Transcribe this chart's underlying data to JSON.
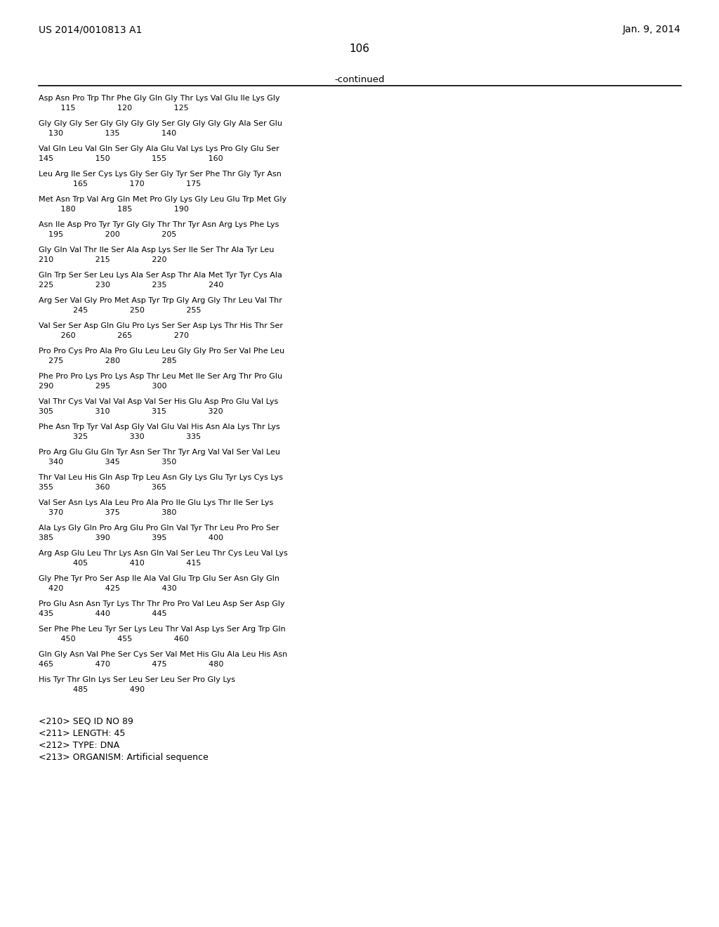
{
  "header_left": "US 2014/0010813 A1",
  "header_right": "Jan. 9, 2014",
  "page_number": "106",
  "continued_text": "-continued",
  "background_color": "#ffffff",
  "text_color": "#000000",
  "sequence_lines": [
    {
      "line1": "Asp Asn Pro Trp Thr Phe Gly Gln Gly Thr Lys Val Glu Ile Lys Gly",
      "line2": "         115                 120                 125"
    },
    {
      "line1": "Gly Gly Gly Ser Gly Gly Gly Gly Ser Gly Gly Gly Gly Ala Ser Glu",
      "line2": "    130                 135                 140"
    },
    {
      "line1": "Val Gln Leu Val Gln Ser Gly Ala Glu Val Lys Lys Pro Gly Glu Ser",
      "line2": "145                 150                 155                 160"
    },
    {
      "line1": "Leu Arg Ile Ser Cys Lys Gly Ser Gly Tyr Ser Phe Thr Gly Tyr Asn",
      "line2": "              165                 170                 175"
    },
    {
      "line1": "Met Asn Trp Val Arg Gln Met Pro Gly Lys Gly Leu Glu Trp Met Gly",
      "line2": "         180                 185                 190"
    },
    {
      "line1": "Asn Ile Asp Pro Tyr Tyr Gly Gly Thr Thr Tyr Asn Arg Lys Phe Lys",
      "line2": "    195                 200                 205"
    },
    {
      "line1": "Gly Gln Val Thr Ile Ser Ala Asp Lys Ser Ile Ser Thr Ala Tyr Leu",
      "line2": "210                 215                 220"
    },
    {
      "line1": "Gln Trp Ser Ser Leu Lys Ala Ser Asp Thr Ala Met Tyr Tyr Cys Ala",
      "line2": "225                 230                 235                 240"
    },
    {
      "line1": "Arg Ser Val Gly Pro Met Asp Tyr Trp Gly Arg Gly Thr Leu Val Thr",
      "line2": "              245                 250                 255"
    },
    {
      "line1": "Val Ser Ser Asp Gln Glu Pro Lys Ser Ser Asp Lys Thr His Thr Ser",
      "line2": "         260                 265                 270"
    },
    {
      "line1": "Pro Pro Cys Pro Ala Pro Glu Leu Leu Gly Gly Pro Ser Val Phe Leu",
      "line2": "    275                 280                 285"
    },
    {
      "line1": "Phe Pro Pro Lys Pro Lys Asp Thr Leu Met Ile Ser Arg Thr Pro Glu",
      "line2": "290                 295                 300"
    },
    {
      "line1": "Val Thr Cys Val Val Val Asp Val Ser His Glu Asp Pro Glu Val Lys",
      "line2": "305                 310                 315                 320"
    },
    {
      "line1": "Phe Asn Trp Tyr Val Asp Gly Val Glu Val His Asn Ala Lys Thr Lys",
      "line2": "              325                 330                 335"
    },
    {
      "line1": "Pro Arg Glu Glu Gln Tyr Asn Ser Thr Tyr Arg Val Val Ser Val Leu",
      "line2": "    340                 345                 350"
    },
    {
      "line1": "Thr Val Leu His Gln Asp Trp Leu Asn Gly Lys Glu Tyr Lys Cys Lys",
      "line2": "355                 360                 365"
    },
    {
      "line1": "Val Ser Asn Lys Ala Leu Pro Ala Pro Ile Glu Lys Thr Ile Ser Lys",
      "line2": "    370                 375                 380"
    },
    {
      "line1": "Ala Lys Gly Gln Pro Arg Glu Pro Gln Val Tyr Thr Leu Pro Pro Ser",
      "line2": "385                 390                 395                 400"
    },
    {
      "line1": "Arg Asp Glu Leu Thr Lys Asn Gln Val Ser Leu Thr Cys Leu Val Lys",
      "line2": "              405                 410                 415"
    },
    {
      "line1": "Gly Phe Tyr Pro Ser Asp Ile Ala Val Glu Trp Glu Ser Asn Gly Gln",
      "line2": "    420                 425                 430"
    },
    {
      "line1": "Pro Glu Asn Asn Tyr Lys Thr Thr Pro Pro Val Leu Asp Ser Asp Gly",
      "line2": "435                 440                 445"
    },
    {
      "line1": "Ser Phe Phe Leu Tyr Ser Lys Leu Thr Val Asp Lys Ser Arg Trp Gln",
      "line2": "         450                 455                 460"
    },
    {
      "line1": "Gln Gly Asn Val Phe Ser Cys Ser Val Met His Glu Ala Leu His Asn",
      "line2": "465                 470                 475                 480"
    },
    {
      "line1": "His Tyr Thr Gln Lys Ser Leu Ser Leu Ser Pro Gly Lys",
      "line2": "              485                 490"
    }
  ],
  "footer_lines": [
    "<210> SEQ ID NO 89",
    "<211> LENGTH: 45",
    "<212> TYPE: DNA",
    "<213> ORGANISM: Artificial sequence"
  ],
  "header_fontsize": 10,
  "page_num_fontsize": 11,
  "continued_fontsize": 9.5,
  "seq_fontsize": 8.0,
  "footer_fontsize": 9.0
}
